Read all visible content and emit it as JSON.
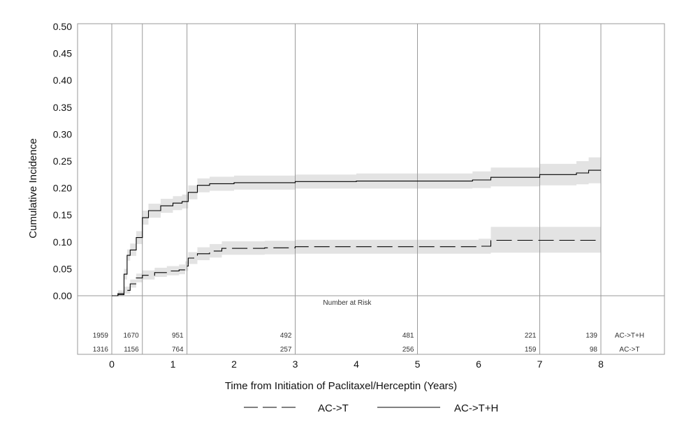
{
  "chart_data": {
    "type": "line",
    "xlabel": "Time from Initiation of Paclitaxel/Herceptin (Years)",
    "ylabel": "Cumulative Incidence",
    "xlim": [
      -0.5,
      9.0
    ],
    "ylim": [
      0,
      0.5
    ],
    "x_ticks": [
      0,
      1,
      2,
      3,
      4,
      5,
      6,
      7,
      8
    ],
    "y_ticks": [
      "0.00",
      "0.05",
      "0.10",
      "0.15",
      "0.20",
      "0.25",
      "0.30",
      "0.35",
      "0.40",
      "0.45",
      "0.50"
    ],
    "vertical_reference_lines": [
      0,
      0.5,
      1.23,
      3,
      5,
      7,
      8
    ],
    "legend_position": "bottom",
    "series": [
      {
        "name": "AC->T",
        "line_style": "dashed",
        "points": [
          [
            0,
            0
          ],
          [
            0.1,
            0.002
          ],
          [
            0.2,
            0.01
          ],
          [
            0.3,
            0.022
          ],
          [
            0.4,
            0.033
          ],
          [
            0.5,
            0.038
          ],
          [
            0.7,
            0.043
          ],
          [
            0.9,
            0.046
          ],
          [
            1.1,
            0.048
          ],
          [
            1.2,
            0.055
          ],
          [
            1.25,
            0.07
          ],
          [
            1.4,
            0.078
          ],
          [
            1.6,
            0.083
          ],
          [
            1.8,
            0.088
          ],
          [
            2.5,
            0.089
          ],
          [
            3,
            0.091
          ],
          [
            4,
            0.091
          ],
          [
            5,
            0.091
          ],
          [
            6.0,
            0.092
          ],
          [
            6.2,
            0.103
          ],
          [
            7,
            0.103
          ],
          [
            8,
            0.103
          ]
        ],
        "ci_lower": [
          0,
          0,
          0.004,
          0.015,
          0.025,
          0.03,
          0.035,
          0.038,
          0.04,
          0.046,
          0.059,
          0.066,
          0.071,
          0.076,
          0.077,
          0.078,
          0.078,
          0.078,
          0.078,
          0.08,
          0.08,
          0.08
        ],
        "ci_upper": [
          0,
          0.006,
          0.017,
          0.03,
          0.041,
          0.047,
          0.052,
          0.055,
          0.058,
          0.064,
          0.081,
          0.09,
          0.096,
          0.101,
          0.102,
          0.104,
          0.104,
          0.104,
          0.106,
          0.128,
          0.128,
          0.128
        ]
      },
      {
        "name": "AC->T+H",
        "line_style": "solid",
        "points": [
          [
            0,
            0
          ],
          [
            0.1,
            0.004
          ],
          [
            0.2,
            0.04
          ],
          [
            0.25,
            0.075
          ],
          [
            0.3,
            0.085
          ],
          [
            0.4,
            0.108
          ],
          [
            0.5,
            0.145
          ],
          [
            0.6,
            0.158
          ],
          [
            0.8,
            0.167
          ],
          [
            1.0,
            0.172
          ],
          [
            1.15,
            0.175
          ],
          [
            1.25,
            0.192
          ],
          [
            1.4,
            0.205
          ],
          [
            1.6,
            0.208
          ],
          [
            2.0,
            0.21
          ],
          [
            3,
            0.212
          ],
          [
            4,
            0.213
          ],
          [
            5,
            0.213
          ],
          [
            5.9,
            0.215
          ],
          [
            6.2,
            0.22
          ],
          [
            7,
            0.225
          ],
          [
            7.6,
            0.228
          ],
          [
            7.8,
            0.233
          ],
          [
            8,
            0.233
          ]
        ],
        "ci_lower": [
          0,
          0,
          0.03,
          0.065,
          0.074,
          0.096,
          0.132,
          0.145,
          0.154,
          0.159,
          0.162,
          0.179,
          0.192,
          0.195,
          0.197,
          0.199,
          0.199,
          0.199,
          0.2,
          0.203,
          0.205,
          0.207,
          0.209,
          0.209
        ],
        "ci_upper": [
          0,
          0.01,
          0.05,
          0.086,
          0.097,
          0.12,
          0.158,
          0.171,
          0.18,
          0.185,
          0.188,
          0.205,
          0.218,
          0.221,
          0.223,
          0.225,
          0.227,
          0.227,
          0.231,
          0.238,
          0.245,
          0.25,
          0.257,
          0.258
        ]
      }
    ],
    "risk_table": {
      "title": "Number at Risk",
      "columns": [
        {
          "x": 0,
          "values": [
            "1959",
            "1316"
          ]
        },
        {
          "x": 0.5,
          "values": [
            "1670",
            "1156"
          ]
        },
        {
          "x": 1.23,
          "values": [
            "951",
            "764"
          ]
        },
        {
          "x": 3,
          "values": [
            "492",
            "257"
          ]
        },
        {
          "x": 5,
          "values": [
            "481",
            "256"
          ]
        },
        {
          "x": 7,
          "values": [
            "221",
            "159"
          ]
        },
        {
          "x": 8,
          "values": [
            "139",
            "98"
          ]
        }
      ],
      "row_labels": [
        "AC->T+H",
        "AC->T"
      ]
    },
    "legend": [
      {
        "label": "AC->T",
        "line_style": "dashed"
      },
      {
        "label": "AC->T+H",
        "line_style": "solid"
      }
    ],
    "colors": {
      "line": "#000000",
      "ci_band": "#e3e3e3",
      "grid": "#9a9a9a",
      "frame": "#9a9a9a"
    }
  }
}
